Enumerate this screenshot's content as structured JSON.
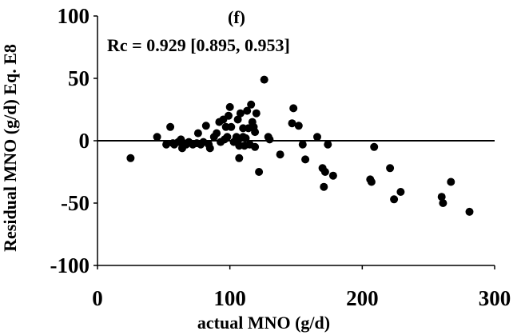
{
  "chart_data": {
    "type": "scatter",
    "panel_label": "(f)",
    "annotation": "Rc = 0.929 [0.895, 0.953]",
    "xlabel": "actual MNO (g/d)",
    "ylabel": "Residual MNO (g/d) Eq. E8",
    "xlim": [
      0,
      300
    ],
    "ylim": [
      -100,
      100
    ],
    "x_ticks": [
      0,
      100,
      200,
      300
    ],
    "y_ticks": [
      100,
      50,
      0,
      -50,
      -100
    ],
    "x_tick_labels": [
      "0",
      "100",
      "200",
      "300"
    ],
    "y_tick_labels": [
      "100",
      "50",
      "0",
      "-50",
      "-100"
    ],
    "reference_line_y": 0,
    "grid": false,
    "marker_color": "#000000",
    "series": [
      {
        "points": [
          [
            25,
            -14
          ],
          [
            45,
            3
          ],
          [
            52,
            -3
          ],
          [
            55,
            11
          ],
          [
            57,
            -2
          ],
          [
            58,
            -3
          ],
          [
            61,
            -1
          ],
          [
            63,
            1
          ],
          [
            64,
            -6
          ],
          [
            65,
            -2
          ],
          [
            67,
            -3
          ],
          [
            69,
            -1
          ],
          [
            72,
            -3
          ],
          [
            75,
            -2
          ],
          [
            76,
            6
          ],
          [
            78,
            -3
          ],
          [
            80,
            -1
          ],
          [
            82,
            12
          ],
          [
            84,
            -3
          ],
          [
            85,
            -6
          ],
          [
            88,
            3
          ],
          [
            90,
            6
          ],
          [
            92,
            15
          ],
          [
            93,
            -1
          ],
          [
            95,
            17
          ],
          [
            96,
            1
          ],
          [
            97,
            11
          ],
          [
            98,
            3
          ],
          [
            99,
            20
          ],
          [
            100,
            27
          ],
          [
            101,
            11
          ],
          [
            103,
            -1
          ],
          [
            104,
            0
          ],
          [
            105,
            3
          ],
          [
            106,
            17
          ],
          [
            106,
            -1
          ],
          [
            107,
            -14
          ],
          [
            107,
            -4
          ],
          [
            108,
            22
          ],
          [
            110,
            3
          ],
          [
            110,
            10
          ],
          [
            111,
            -4
          ],
          [
            112,
            2
          ],
          [
            113,
            24
          ],
          [
            114,
            10
          ],
          [
            115,
            -3
          ],
          [
            116,
            29
          ],
          [
            117,
            15
          ],
          [
            118,
            11
          ],
          [
            119,
            -5
          ],
          [
            119,
            7
          ],
          [
            120,
            22
          ],
          [
            122,
            -25
          ],
          [
            126,
            49
          ],
          [
            129,
            3
          ],
          [
            130,
            1
          ],
          [
            138,
            -11
          ],
          [
            147,
            14
          ],
          [
            148,
            26
          ],
          [
            152,
            12
          ],
          [
            155,
            -3
          ],
          [
            157,
            -15
          ],
          [
            166,
            3
          ],
          [
            170,
            -22
          ],
          [
            171,
            -37
          ],
          [
            172,
            -25
          ],
          [
            174,
            -3
          ],
          [
            178,
            -28
          ],
          [
            206,
            -31
          ],
          [
            207,
            -33
          ],
          [
            209,
            -5
          ],
          [
            221,
            -22
          ],
          [
            224,
            -47
          ],
          [
            229,
            -41
          ],
          [
            260,
            -45
          ],
          [
            261,
            -50
          ],
          [
            267,
            -33
          ],
          [
            281,
            -57
          ]
        ]
      }
    ]
  }
}
